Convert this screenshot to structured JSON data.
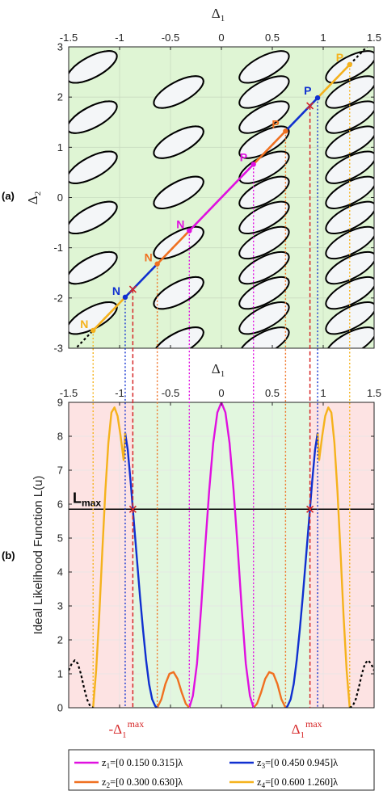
{
  "chart_data": [
    {
      "panel_label": "(a)",
      "type": "line",
      "xlabel": "Δ1",
      "ylabel": "Δ2",
      "xlim": [
        -1.5,
        1.5
      ],
      "ylim": [
        -3,
        3
      ],
      "xticks": [
        -1.5,
        -1,
        -0.5,
        0,
        0.5,
        1,
        1.5
      ],
      "yticks": [
        -3,
        -2,
        -1,
        0,
        1,
        2,
        3
      ],
      "xtick_labels": [
        "-1.5",
        "-1",
        "-0.5",
        "0",
        "0.5",
        "1",
        "1.5"
      ],
      "ytick_labels": [
        "-3",
        "-2",
        "-1",
        "0",
        "1",
        "2",
        "3"
      ],
      "background": "#dff5d4",
      "ellipse_columns_x": [
        -1.27,
        -0.42,
        0.42,
        1.27
      ],
      "ellipse_rows_y": [
        2.6,
        1.6,
        0.6,
        -0.4,
        -1.4,
        -2.4
      ],
      "ellipse_offset_rows_y": [
        2.1,
        1.1,
        0.1,
        -0.9,
        -1.9,
        -2.9
      ],
      "diagonal": {
        "slope": 2.1,
        "range": [
          -1.3,
          1.3
        ]
      },
      "segments": [
        {
          "color": "#e010e0",
          "x": [
            -0.315,
            0.315
          ]
        },
        {
          "color": "#f07020",
          "x": [
            -0.63,
            -0.315
          ]
        },
        {
          "color": "#f07020",
          "x": [
            0.315,
            0.63
          ]
        },
        {
          "color": "#1030d0",
          "x": [
            -0.945,
            -0.63
          ]
        },
        {
          "color": "#1030d0",
          "x": [
            0.63,
            0.945
          ]
        },
        {
          "color": "#f5b21c",
          "x": [
            -1.26,
            -0.945
          ]
        },
        {
          "color": "#f5b21c",
          "x": [
            0.945,
            1.26
          ]
        }
      ],
      "point_labels": [
        {
          "text": "N",
          "x": -1.26,
          "color": "#f5b21c"
        },
        {
          "text": "N",
          "x": -0.945,
          "color": "#1030d0"
        },
        {
          "text": "N",
          "x": -0.63,
          "color": "#f07020"
        },
        {
          "text": "N",
          "x": -0.315,
          "color": "#e010e0"
        },
        {
          "text": "P",
          "x": 0.315,
          "color": "#e010e0"
        },
        {
          "text": "P",
          "x": 0.63,
          "color": "#f07020"
        },
        {
          "text": "P",
          "x": 0.945,
          "color": "#1030d0"
        },
        {
          "text": "P",
          "x": 1.26,
          "color": "#f5b21c"
        }
      ],
      "crossings_x": [
        -0.87,
        0.87
      ]
    },
    {
      "panel_label": "(b)",
      "type": "line",
      "xlabel": "Δ1",
      "ylabel": "Ideal Likelihood Function L(u)",
      "xlim": [
        -1.5,
        1.5
      ],
      "ylim": [
        0,
        9
      ],
      "xticks": [
        -1.5,
        -1,
        -0.5,
        0,
        0.5,
        1,
        1.5
      ],
      "yticks": [
        0,
        1,
        2,
        3,
        4,
        5,
        6,
        7,
        8,
        9
      ],
      "xtick_labels": [
        "-1.5",
        "-1",
        "-0.5",
        "0",
        "0.5",
        "1",
        "1.5"
      ],
      "ytick_labels": [
        "0",
        "1",
        "2",
        "3",
        "4",
        "5",
        "6",
        "7",
        "8",
        "9"
      ],
      "regions": [
        {
          "x": [
            -1.5,
            -0.87
          ],
          "color": "#fde3e3"
        },
        {
          "x": [
            -0.87,
            0.87
          ],
          "color": "#e2f7df"
        },
        {
          "x": [
            0.87,
            1.5
          ],
          "color": "#fde3e3"
        }
      ],
      "lmax_label": "Lmax",
      "lmax_value": 5.85,
      "threshold_x_labels": [
        "-Δ1max",
        "Δ1max"
      ],
      "threshold_x": [
        -0.87,
        0.87
      ],
      "series": [
        {
          "name": "z1=[0 0.150 0.315]λ",
          "color": "#e010e0",
          "x": [
            -0.315,
            -0.28,
            -0.24,
            -0.2,
            -0.16,
            -0.12,
            -0.08,
            -0.04,
            0,
            0.04,
            0.08,
            0.12,
            0.16,
            0.2,
            0.24,
            0.28,
            0.315
          ],
          "y": [
            0,
            0.35,
            1.3,
            2.9,
            4.7,
            6.4,
            7.8,
            8.7,
            9,
            8.7,
            7.8,
            6.4,
            4.7,
            2.9,
            1.3,
            0.35,
            0
          ]
        },
        {
          "name": "z2=[0 0.300 0.630]λ",
          "color": "#f07020",
          "x": [
            -0.63,
            -0.59,
            -0.55,
            -0.51,
            -0.47,
            -0.43,
            -0.39,
            -0.35,
            -0.315
          ],
          "y": [
            0,
            0.25,
            0.7,
            1.0,
            1.05,
            0.85,
            0.45,
            0.12,
            0
          ]
        },
        {
          "name": "z2=[0 0.300 0.630]λ",
          "color": "#f07020",
          "x": [
            0.315,
            0.35,
            0.39,
            0.43,
            0.47,
            0.51,
            0.55,
            0.59,
            0.63
          ],
          "y": [
            0,
            0.12,
            0.45,
            0.85,
            1.05,
            1.0,
            0.7,
            0.25,
            0
          ]
        },
        {
          "name": "z3=[0 0.450 0.945]λ",
          "color": "#1030d0",
          "x": [
            -0.945,
            -0.92,
            -0.89,
            -0.86,
            -0.83,
            -0.8,
            -0.77,
            -0.74,
            -0.71,
            -0.68,
            -0.65,
            -0.63
          ],
          "y": [
            8.1,
            7.6,
            6.6,
            5.5,
            4.4,
            3.3,
            2.3,
            1.4,
            0.7,
            0.25,
            0.05,
            0
          ]
        },
        {
          "name": "z3=[0 0.450 0.945]λ",
          "color": "#1030d0",
          "x": [
            0.63,
            0.65,
            0.68,
            0.71,
            0.74,
            0.77,
            0.8,
            0.83,
            0.86,
            0.89,
            0.92,
            0.945
          ],
          "y": [
            0,
            0.05,
            0.25,
            0.7,
            1.4,
            2.3,
            3.3,
            4.4,
            5.5,
            6.6,
            7.6,
            8.1
          ]
        },
        {
          "name": "z4=[0 0.600 1.260]λ",
          "color": "#f5b21c",
          "x": [
            -1.26,
            -1.23,
            -1.2,
            -1.17,
            -1.14,
            -1.11,
            -1.08,
            -1.05,
            -1.02,
            -0.99,
            -0.96,
            -0.945
          ],
          "y": [
            0,
            1.1,
            2.7,
            4.6,
            6.4,
            7.8,
            8.7,
            8.85,
            8.6,
            8.0,
            7.3,
            8.1
          ]
        },
        {
          "name": "z4=[0 0.600 1.260]λ",
          "color": "#f5b21c",
          "x": [
            0.945,
            0.96,
            0.99,
            1.02,
            1.05,
            1.08,
            1.11,
            1.14,
            1.17,
            1.2,
            1.23,
            1.26
          ],
          "y": [
            8.1,
            7.3,
            8.0,
            8.6,
            8.85,
            8.7,
            7.8,
            6.4,
            4.6,
            2.7,
            1.1,
            0
          ]
        },
        {
          "color": "#000000",
          "dotted": true,
          "x": [
            -1.5,
            -1.47,
            -1.44,
            -1.41,
            -1.38,
            -1.35,
            -1.32,
            -1.29,
            -1.26
          ],
          "y": [
            1.1,
            1.3,
            1.4,
            1.3,
            1.0,
            0.6,
            0.25,
            0.05,
            0
          ]
        },
        {
          "color": "#000000",
          "dotted": true,
          "x": [
            1.26,
            1.29,
            1.32,
            1.35,
            1.38,
            1.41,
            1.44,
            1.47,
            1.5
          ],
          "y": [
            0,
            0.05,
            0.25,
            0.6,
            1.0,
            1.3,
            1.4,
            1.3,
            1.1
          ]
        }
      ],
      "legend": [
        {
          "label": "z1=[0 0.150 0.315]λ",
          "sub": "1",
          "text": "=[0 0.150 0.315]λ",
          "color": "#e010e0"
        },
        {
          "label": "z3=[0 0.450 0.945]λ",
          "sub": "3",
          "text": "=[0 0.450 0.945]λ",
          "color": "#1030d0"
        },
        {
          "label": "z2=[0 0.300 0.630]λ",
          "sub": "2",
          "text": "=[0 0.300 0.630]λ",
          "color": "#f07020"
        },
        {
          "label": "z4=[0 0.600 1.260]λ",
          "sub": "4",
          "text": "=[0 0.600 1.260]λ",
          "color": "#f5b21c"
        }
      ]
    }
  ]
}
